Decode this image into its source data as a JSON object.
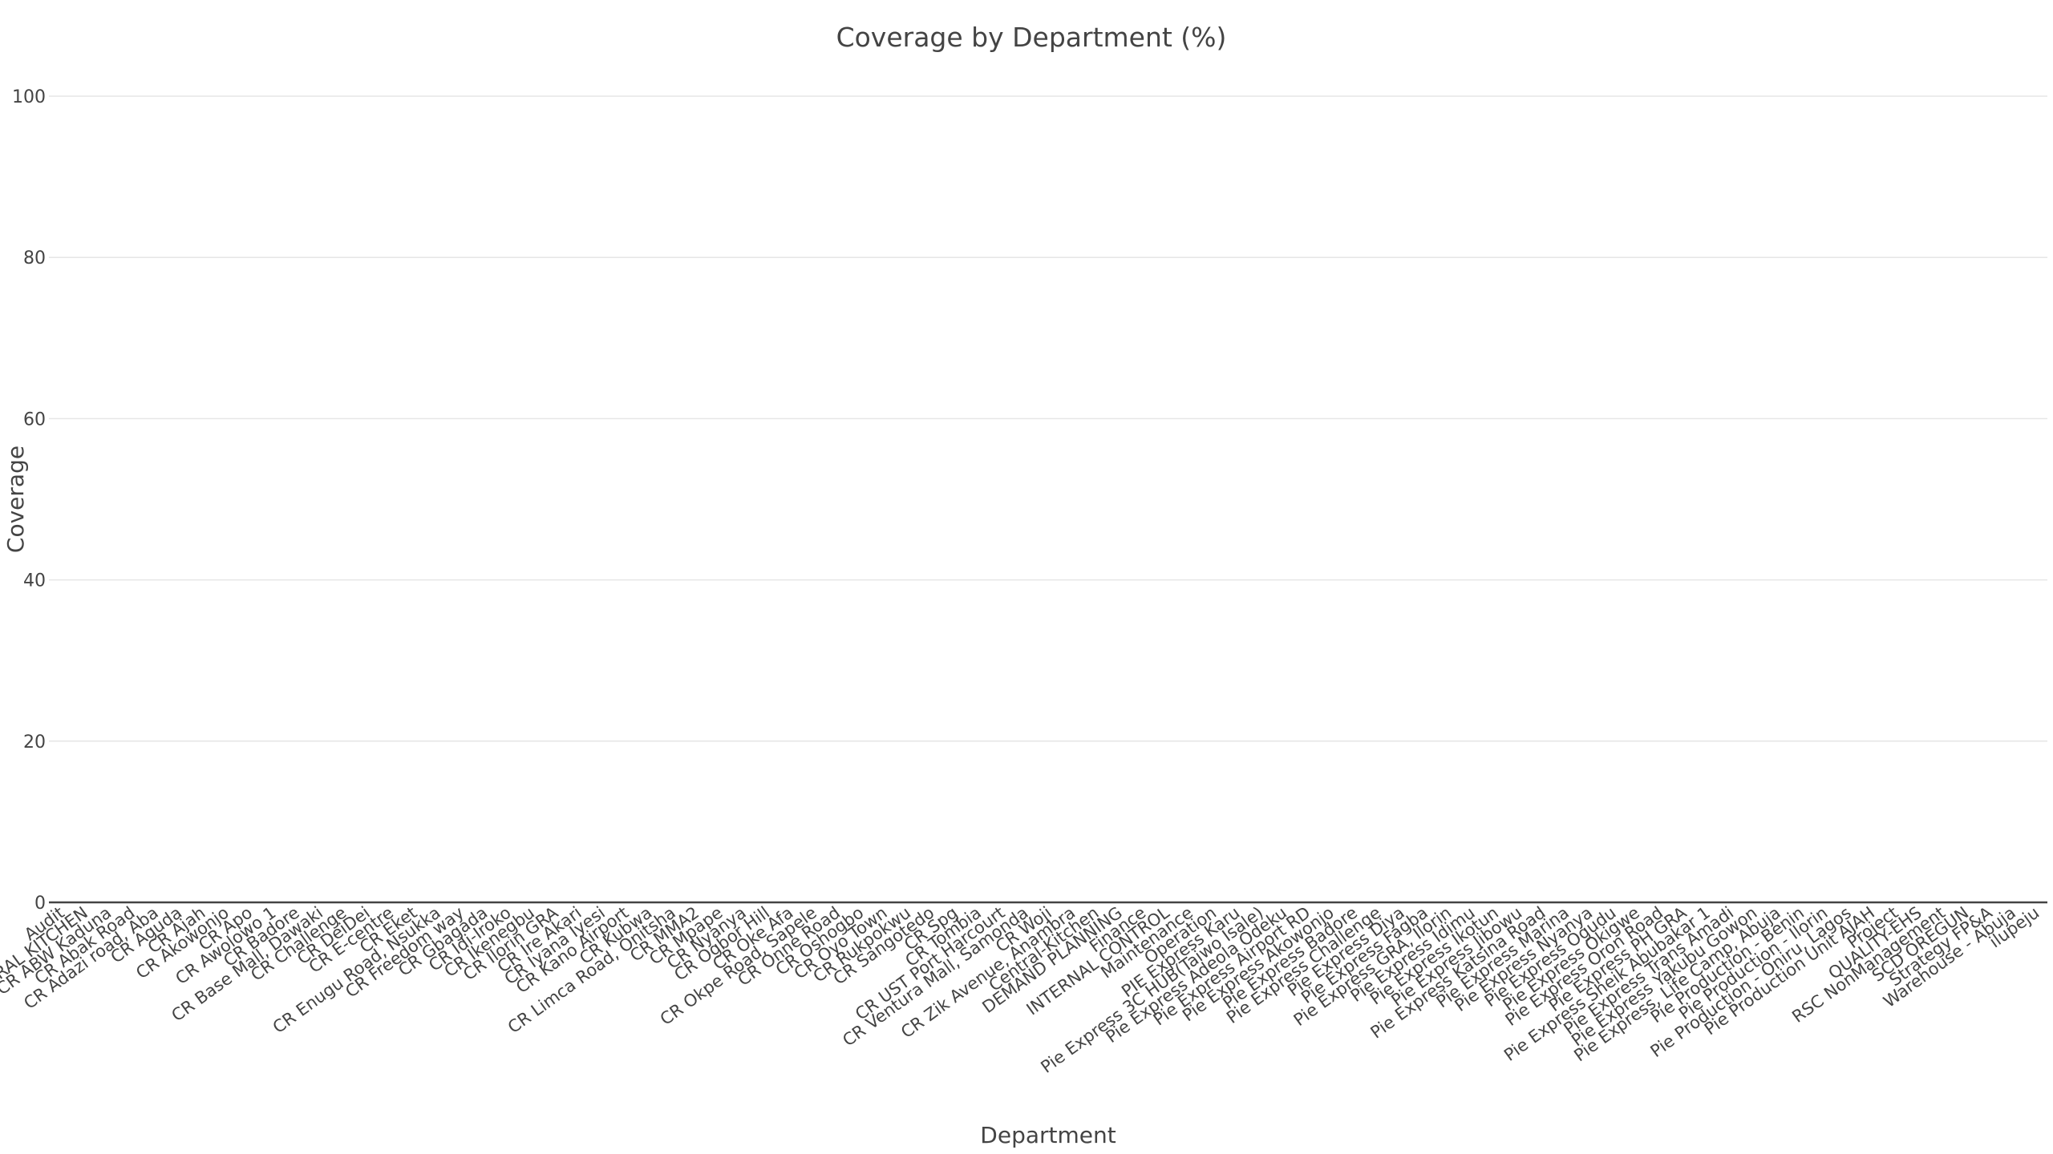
{
  "chart_data": {
    "type": "bar",
    "title": "Coverage by Department (%)",
    "xlabel": "Department",
    "ylabel": "Coverage",
    "ylim": [
      0,
      100
    ],
    "yticks": [
      0,
      20,
      40,
      60,
      80,
      100
    ],
    "grid": true,
    "categories": [
      "Audit",
      "CENTRAL KITCHEN",
      "CR ABW Kaduna",
      "CR Abak Road",
      "CR Adazi road, Aba",
      "CR Aguda",
      "CR Ajah",
      "CR Akowonjo",
      "CR Apo",
      "CR Awolowo 1",
      "CR Badore",
      "CR Base Mall, Dawaki",
      "CR Challenge",
      "CR DeiDei",
      "CR E-centre",
      "CR Eket",
      "CR Enugu Road, Nsukka",
      "CR Freedom way",
      "CR Gbagada",
      "CR Idi-Iroko",
      "CR Ikenegbu",
      "CR Ilorin GRA",
      "CR Ire Akari",
      "CR Iyana Iyesi",
      "CR Kano Airport",
      "CR Kubwa",
      "CR Limca Road, Onitsha",
      "CR MMA2",
      "CR Mpape",
      "CR Nyanya",
      "CR Ogbor Hill",
      "CR Oke Afa",
      "CR Okpe Road, Sapele",
      "CR Onne Road",
      "CR Oshogbo",
      "CR Oyo Town",
      "CR Rukpokwu",
      "CR Sangotedo",
      "CR Spg",
      "CR Tombia",
      "CR UST Port Harcourt",
      "CR Ventura Mall, Samonda",
      "CR Woji",
      "CR Zik Avenue, Anambra",
      "Central-Kitchen",
      "DEMAND PLANNING",
      "Finance",
      "INTERNAL CONTROL",
      "Maintenance",
      "Operation",
      "PIE Express Karu",
      "Pie Express 3C HUB(Taiwo Isale)",
      "Pie Express Adeola Odeku",
      "Pie Express Airport RD",
      "Pie Express Akowonjo",
      "Pie Express Badore",
      "Pie Express Challenge",
      "Pie Express Diya",
      "Pie Express Fagba",
      "Pie Express GRA, Ilorin",
      "Pie Express Idimu",
      "Pie Express Ikotun",
      "Pie Express Jibowu",
      "Pie Express Katsina Road",
      "Pie Express Marina",
      "Pie Express Nyanya",
      "Pie Express Ogudu",
      "Pie Express Okigwe",
      "Pie Express Oron Road",
      "Pie Express PH GRA",
      "Pie Express Sheik Abubakar 1",
      "Pie Express Trans Amadi",
      "Pie Express Yakubu Gowon",
      "Pie Express, Life Camp, Abuja",
      "Pie Production - Benin",
      "Pie Production - Ilorin",
      "Pie Production - Oniru, Lagos",
      "Pie Production Unit AJAH",
      "Project",
      "QUALITY-EHS",
      "RSC NonManagement",
      "SCD OREGUN",
      "Strategy FP&A",
      "Warehouse - Abuja",
      "ilupeju"
    ],
    "values": [
      0,
      0,
      0,
      0,
      0,
      0,
      0,
      0,
      0,
      0,
      0,
      0,
      0,
      0,
      0,
      0,
      0,
      0,
      0,
      0,
      0,
      0,
      0,
      0,
      0,
      0,
      0,
      0,
      0,
      0,
      0,
      0,
      0,
      0,
      0,
      0,
      0,
      0,
      0,
      0,
      0,
      0,
      0,
      0,
      0,
      0,
      0,
      0,
      0,
      0,
      0,
      0,
      0,
      0,
      0,
      0,
      0,
      0,
      0,
      0,
      0,
      0,
      0,
      0,
      0,
      0,
      0,
      0,
      0,
      0,
      0,
      0,
      0,
      0,
      0,
      0,
      0,
      0,
      0,
      0,
      0,
      0,
      0,
      0,
      0
    ],
    "bar_color": "#636efa"
  }
}
